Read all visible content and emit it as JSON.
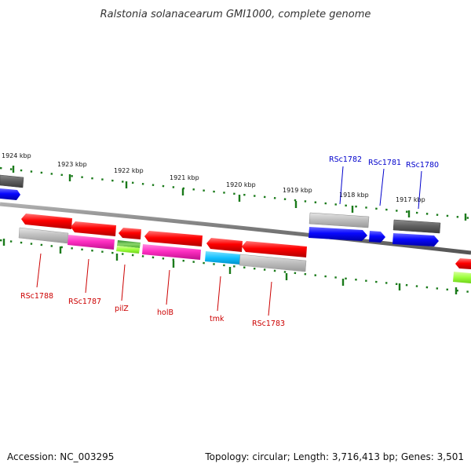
{
  "title": "Ralstonia solanacearum GMI1000, complete genome",
  "accession": "Accession: NC_003295",
  "summary": "Topology: circular; Length: 3,716,413 bp; Genes: 3,501",
  "kbp_labels": [
    "1924 kbp",
    "1923 kbp",
    "1922 kbp",
    "1921 kbp",
    "1920 kbp",
    "1919 kbp",
    "1918 kbp",
    "1917 kbp"
  ],
  "gene_labels": {
    "rsc1788": "RSc1788",
    "rsc1787": "RSc1787",
    "pilz": "pilZ",
    "holb": "holB",
    "tmk": "tmk",
    "rsc1783": "RSc1783",
    "rsc1782": "RSc1782",
    "rsc1781": "RSc1781",
    "rsc1780": "RSc1780"
  },
  "colors": {
    "red_label": "#cc0000",
    "blue_label": "#0000cc",
    "tick": "#1a7a1a",
    "backbone": "#808080",
    "red": "#ff0000",
    "magenta": "#ff33cc",
    "green": "#33aa33",
    "lime": "#99ff33",
    "cyan": "#11c4ff",
    "blue": "#0a0aff",
    "gray": "#bfbfbf",
    "dark_gray": "#666666"
  }
}
